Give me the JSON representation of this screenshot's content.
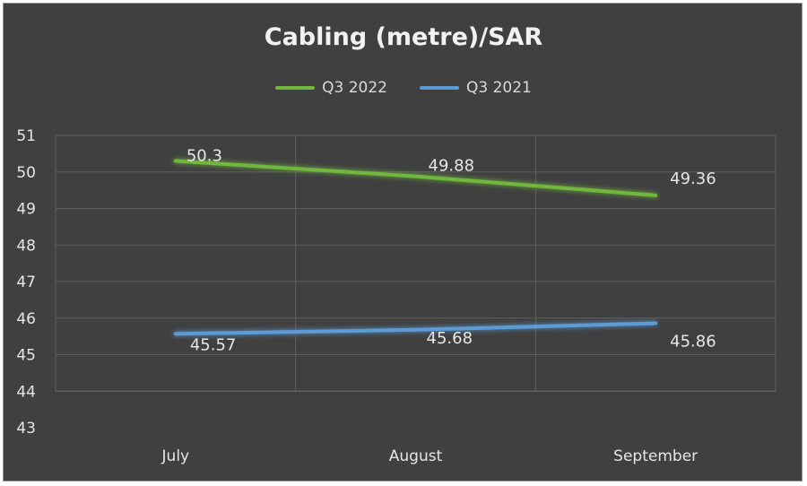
{
  "chart_data": {
    "type": "line",
    "title": "Cabling (metre)/SAR",
    "categories": [
      "July",
      "August",
      "September"
    ],
    "series": [
      {
        "name": "Q3 2022",
        "values": [
          50.3,
          49.88,
          49.36
        ],
        "color": "#70b83c",
        "labels": [
          "50.3",
          "49.88",
          "49.36"
        ]
      },
      {
        "name": "Q3 2021",
        "values": [
          45.57,
          45.68,
          45.86
        ],
        "color": "#5b9bd5",
        "labels": [
          "45.57",
          "45.68",
          "45.86"
        ]
      }
    ],
    "ylim": [
      43,
      51
    ],
    "yticks": [
      "43",
      "44",
      "45",
      "46",
      "47",
      "48",
      "49",
      "50",
      "51"
    ],
    "xlabel": "",
    "ylabel": "",
    "grid": true,
    "legend": "top-center",
    "background": "#404040"
  }
}
